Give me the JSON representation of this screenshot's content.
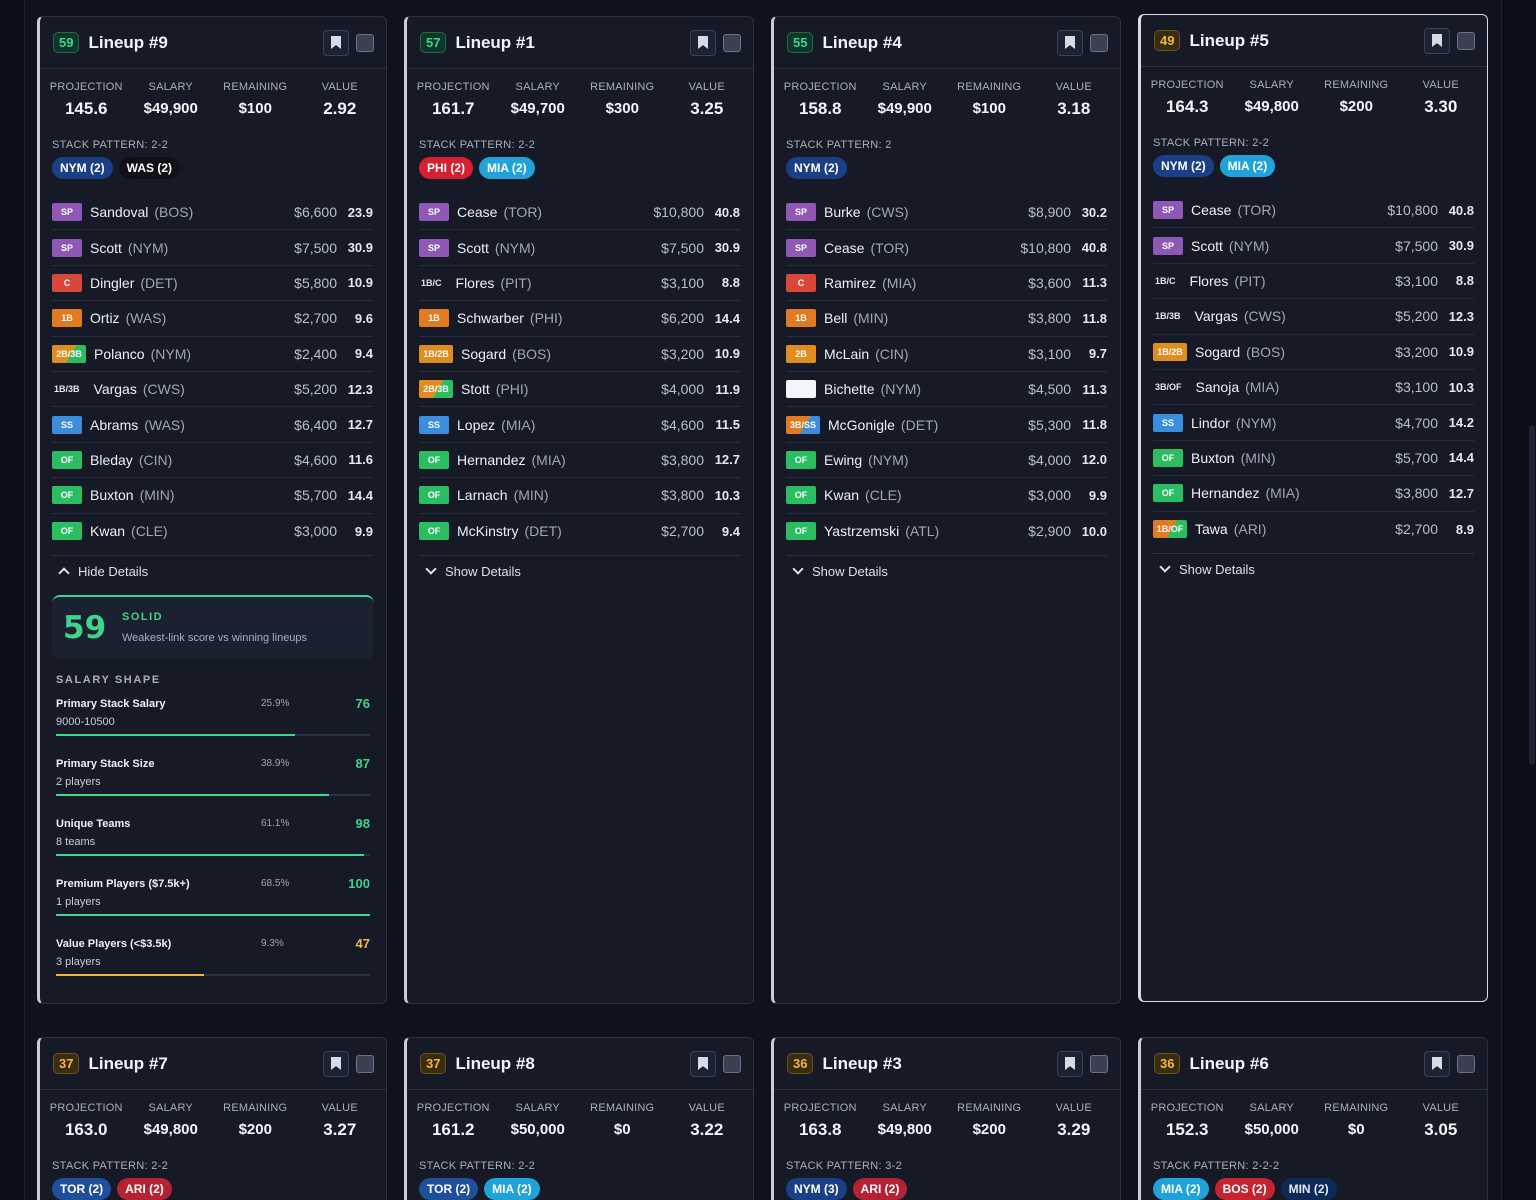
{
  "colors": {
    "SP": "#8e58b4",
    "C": "#d9463a",
    "1B": "#e07b20",
    "2B": "#e08d20",
    "SS": "#3a8edc",
    "OF": "#2bbd62",
    "2B/3B": "#e08d20",
    "1B/2B": "#e08d20",
    "3B/SS": "#e07b20",
    "1B/OF": "#e07b20",
    "NYM": "#1a3f86",
    "WAS": "#0f1116",
    "PHI": "#d6202f",
    "MIA": "#1fa3d8",
    "TOR": "#1e4f9a",
    "ARI": "#b52234",
    "BOS": "#c4232f",
    "MIN": "#0d2a57",
    "good": "#3fd48b",
    "warn": "#f0b840"
  },
  "labels": {
    "projection": "PROJECTION",
    "salary": "SALARY",
    "remaining": "REMAINING",
    "value": "VALUE",
    "stack_prefix": "STACK PATTERN:",
    "show_details": "Show Details",
    "hide_details": "Hide Details",
    "salary_shape": "SALARY SHAPE"
  },
  "lineups": [
    {
      "score": "59",
      "score_tone": "green",
      "title": "Lineup #9",
      "projection": "145.6",
      "salary": "$49,900",
      "remaining": "$100",
      "value": "2.92",
      "stack_pattern": "2-2",
      "stacks": [
        {
          "team": "NYM",
          "label": "NYM (2)"
        },
        {
          "team": "WAS",
          "label": "WAS (2)"
        }
      ],
      "players": [
        {
          "pos": "SP",
          "name": "Sandoval",
          "team": "(BOS)",
          "salary": "$6,600",
          "pts": "23.9"
        },
        {
          "pos": "SP",
          "name": "Scott",
          "team": "(NYM)",
          "salary": "$7,500",
          "pts": "30.9"
        },
        {
          "pos": "C",
          "name": "Dingler",
          "team": "(DET)",
          "salary": "$5,800",
          "pts": "10.9"
        },
        {
          "pos": "1B",
          "name": "Ortiz",
          "team": "(WAS)",
          "salary": "$2,700",
          "pts": "9.6"
        },
        {
          "pos": "2B/3B",
          "name": "Polanco",
          "team": "(NYM)",
          "salary": "$2,400",
          "pts": "9.4"
        },
        {
          "pos": "1B/3B",
          "plain": true,
          "name": "Vargas",
          "team": "(CWS)",
          "salary": "$5,200",
          "pts": "12.3"
        },
        {
          "pos": "SS",
          "name": "Abrams",
          "team": "(WAS)",
          "salary": "$6,400",
          "pts": "12.7"
        },
        {
          "pos": "OF",
          "name": "Bleday",
          "team": "(CIN)",
          "salary": "$4,600",
          "pts": "11.6"
        },
        {
          "pos": "OF",
          "name": "Buxton",
          "team": "(MIN)",
          "salary": "$5,700",
          "pts": "14.4"
        },
        {
          "pos": "OF",
          "name": "Kwan",
          "team": "(CLE)",
          "salary": "$3,000",
          "pts": "9.9"
        }
      ],
      "expanded": true,
      "details": {
        "score": "59",
        "rating": "SOLID",
        "rating_sub": "Weakest-link score vs winning lineups",
        "metrics": [
          {
            "name": "Primary Stack Salary",
            "sub": "9000-10500",
            "pct": "25.9%",
            "score": "76",
            "fill": 0.76,
            "tone": "good"
          },
          {
            "name": "Primary Stack Size",
            "sub": "2 players",
            "pct": "38.9%",
            "score": "87",
            "fill": 0.87,
            "tone": "good"
          },
          {
            "name": "Unique Teams",
            "sub": "8 teams",
            "pct": "61.1%",
            "score": "98",
            "fill": 0.98,
            "tone": "good"
          },
          {
            "name": "Premium Players ($7.5k+)",
            "sub": "1 players",
            "pct": "68.5%",
            "score": "100",
            "fill": 1.0,
            "tone": "good"
          },
          {
            "name": "Value Players (<$3.5k)",
            "sub": "3 players",
            "pct": "9.3%",
            "score": "47",
            "fill": 0.47,
            "tone": "warn"
          }
        ]
      }
    },
    {
      "score": "57",
      "score_tone": "green",
      "title": "Lineup #1",
      "projection": "161.7",
      "salary": "$49,700",
      "remaining": "$300",
      "value": "3.25",
      "stack_pattern": "2-2",
      "stacks": [
        {
          "team": "PHI",
          "label": "PHI (2)"
        },
        {
          "team": "MIA",
          "label": "MIA (2)"
        }
      ],
      "players": [
        {
          "pos": "SP",
          "name": "Cease",
          "team": "(TOR)",
          "salary": "$10,800",
          "pts": "40.8"
        },
        {
          "pos": "SP",
          "name": "Scott",
          "team": "(NYM)",
          "salary": "$7,500",
          "pts": "30.9"
        },
        {
          "pos": "1B/C",
          "plain": true,
          "name": "Flores",
          "team": "(PIT)",
          "salary": "$3,100",
          "pts": "8.8"
        },
        {
          "pos": "1B",
          "name": "Schwarber",
          "team": "(PHI)",
          "salary": "$6,200",
          "pts": "14.4"
        },
        {
          "pos": "1B/2B",
          "name": "Sogard",
          "team": "(BOS)",
          "salary": "$3,200",
          "pts": "10.9"
        },
        {
          "pos": "2B/3B",
          "name": "Stott",
          "team": "(PHI)",
          "salary": "$4,000",
          "pts": "11.9"
        },
        {
          "pos": "SS",
          "name": "Lopez",
          "team": "(MIA)",
          "salary": "$4,600",
          "pts": "11.5"
        },
        {
          "pos": "OF",
          "name": "Hernandez",
          "team": "(MIA)",
          "salary": "$3,800",
          "pts": "12.7"
        },
        {
          "pos": "OF",
          "name": "Larnach",
          "team": "(MIN)",
          "salary": "$3,800",
          "pts": "10.3"
        },
        {
          "pos": "OF",
          "name": "McKinstry",
          "team": "(DET)",
          "salary": "$2,700",
          "pts": "9.4"
        }
      ],
      "expanded": false
    },
    {
      "score": "55",
      "score_tone": "green",
      "title": "Lineup #4",
      "projection": "158.8",
      "salary": "$49,900",
      "remaining": "$100",
      "value": "3.18",
      "stack_pattern": "2",
      "stacks": [
        {
          "team": "NYM",
          "label": "NYM (2)"
        }
      ],
      "players": [
        {
          "pos": "SP",
          "name": "Burke",
          "team": "(CWS)",
          "salary": "$8,900",
          "pts": "30.2"
        },
        {
          "pos": "SP",
          "name": "Cease",
          "team": "(TOR)",
          "salary": "$10,800",
          "pts": "40.8"
        },
        {
          "pos": "C",
          "name": "Ramirez",
          "team": "(MIA)",
          "salary": "$3,600",
          "pts": "11.3"
        },
        {
          "pos": "1B",
          "name": "Bell",
          "team": "(MIN)",
          "salary": "$3,800",
          "pts": "11.8"
        },
        {
          "pos": "2B",
          "name": "McLain",
          "team": "(CIN)",
          "salary": "$3,100",
          "pts": "9.7"
        },
        {
          "pos": "",
          "blank": true,
          "name": "Bichette",
          "team": "(NYM)",
          "salary": "$4,500",
          "pts": "11.3"
        },
        {
          "pos": "3B/SS",
          "name": "McGonigle",
          "team": "(DET)",
          "salary": "$5,300",
          "pts": "11.8"
        },
        {
          "pos": "OF",
          "name": "Ewing",
          "team": "(NYM)",
          "salary": "$4,000",
          "pts": "12.0"
        },
        {
          "pos": "OF",
          "name": "Kwan",
          "team": "(CLE)",
          "salary": "$3,000",
          "pts": "9.9"
        },
        {
          "pos": "OF",
          "name": "Yastrzemski",
          "team": "(ATL)",
          "salary": "$2,900",
          "pts": "10.0"
        }
      ],
      "expanded": false
    },
    {
      "score": "49",
      "score_tone": "yellow",
      "title": "Lineup #5",
      "projection": "164.3",
      "salary": "$49,800",
      "remaining": "$200",
      "value": "3.30",
      "stack_pattern": "2-2",
      "stacks": [
        {
          "team": "NYM",
          "label": "NYM (2)"
        },
        {
          "team": "MIA",
          "label": "MIA (2)"
        }
      ],
      "players": [
        {
          "pos": "SP",
          "name": "Cease",
          "team": "(TOR)",
          "salary": "$10,800",
          "pts": "40.8"
        },
        {
          "pos": "SP",
          "name": "Scott",
          "team": "(NYM)",
          "salary": "$7,500",
          "pts": "30.9"
        },
        {
          "pos": "1B/C",
          "plain": true,
          "name": "Flores",
          "team": "(PIT)",
          "salary": "$3,100",
          "pts": "8.8"
        },
        {
          "pos": "1B/3B",
          "plain": true,
          "name": "Vargas",
          "team": "(CWS)",
          "salary": "$5,200",
          "pts": "12.3"
        },
        {
          "pos": "1B/2B",
          "name": "Sogard",
          "team": "(BOS)",
          "salary": "$3,200",
          "pts": "10.9"
        },
        {
          "pos": "3B/OF",
          "plain": true,
          "name": "Sanoja",
          "team": "(MIA)",
          "salary": "$3,100",
          "pts": "10.3"
        },
        {
          "pos": "SS",
          "name": "Lindor",
          "team": "(NYM)",
          "salary": "$4,700",
          "pts": "14.2"
        },
        {
          "pos": "OF",
          "name": "Buxton",
          "team": "(MIN)",
          "salary": "$5,700",
          "pts": "14.4"
        },
        {
          "pos": "OF",
          "name": "Hernandez",
          "team": "(MIA)",
          "salary": "$3,800",
          "pts": "12.7"
        },
        {
          "pos": "1B/OF",
          "name": "Tawa",
          "team": "(ARI)",
          "salary": "$2,700",
          "pts": "8.9"
        }
      ],
      "expanded": false
    },
    {
      "score": "37",
      "score_tone": "yellow",
      "title": "Lineup #7",
      "projection": "163.0",
      "salary": "$49,800",
      "remaining": "$200",
      "value": "3.27",
      "stack_pattern": "2-2",
      "stacks": [
        {
          "team": "TOR",
          "label": "TOR (2)"
        },
        {
          "team": "ARI",
          "label": "ARI (2)"
        }
      ],
      "players": [],
      "expanded": false
    },
    {
      "score": "37",
      "score_tone": "yellow",
      "title": "Lineup #8",
      "projection": "161.2",
      "salary": "$50,000",
      "remaining": "$0",
      "value": "3.22",
      "stack_pattern": "2-2",
      "stacks": [
        {
          "team": "TOR",
          "label": "TOR (2)"
        },
        {
          "team": "MIA",
          "label": "MIA (2)"
        }
      ],
      "players": [],
      "expanded": false
    },
    {
      "score": "36",
      "score_tone": "yellow",
      "title": "Lineup #3",
      "projection": "163.8",
      "salary": "$49,800",
      "remaining": "$200",
      "value": "3.29",
      "stack_pattern": "3-2",
      "stacks": [
        {
          "team": "NYM",
          "label": "NYM (3)"
        },
        {
          "team": "ARI",
          "label": "ARI (2)"
        }
      ],
      "players": [],
      "expanded": false
    },
    {
      "score": "36",
      "score_tone": "yellow",
      "title": "Lineup #6",
      "projection": "152.3",
      "salary": "$50,000",
      "remaining": "$0",
      "value": "3.05",
      "stack_pattern": "2-2-2",
      "stacks": [
        {
          "team": "MIA",
          "label": "MIA (2)"
        },
        {
          "team": "BOS",
          "label": "BOS (2)"
        },
        {
          "team": "MIN",
          "label": "MIN (2)"
        }
      ],
      "players": [],
      "expanded": false
    }
  ]
}
